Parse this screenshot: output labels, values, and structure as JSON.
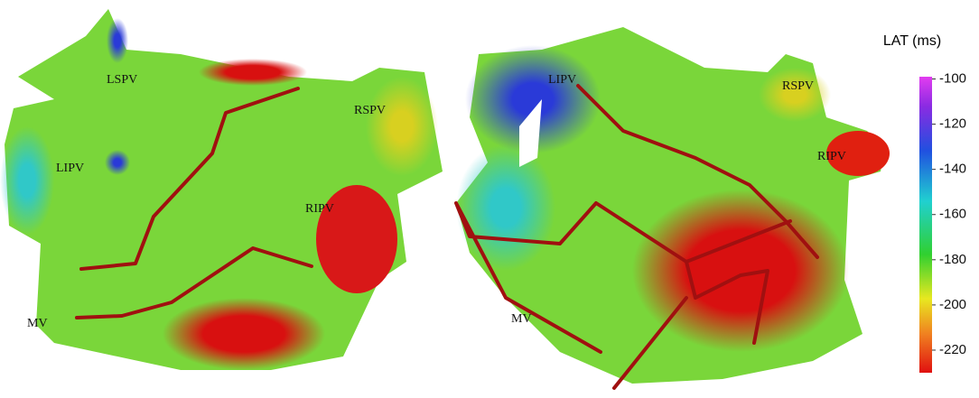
{
  "left_map": {
    "labels": [
      "LSPV",
      "LIPV",
      "RSPV",
      "RIPV",
      "MV"
    ]
  },
  "right_map": {
    "labels": [
      "LIPV",
      "RSPV",
      "RIPV",
      "MV"
    ]
  },
  "colorbar": {
    "title": "LAT (ms)",
    "range": [
      -99,
      -230
    ],
    "ticks": [
      -100,
      -120,
      -140,
      -160,
      -180,
      -200,
      -220
    ]
  }
}
